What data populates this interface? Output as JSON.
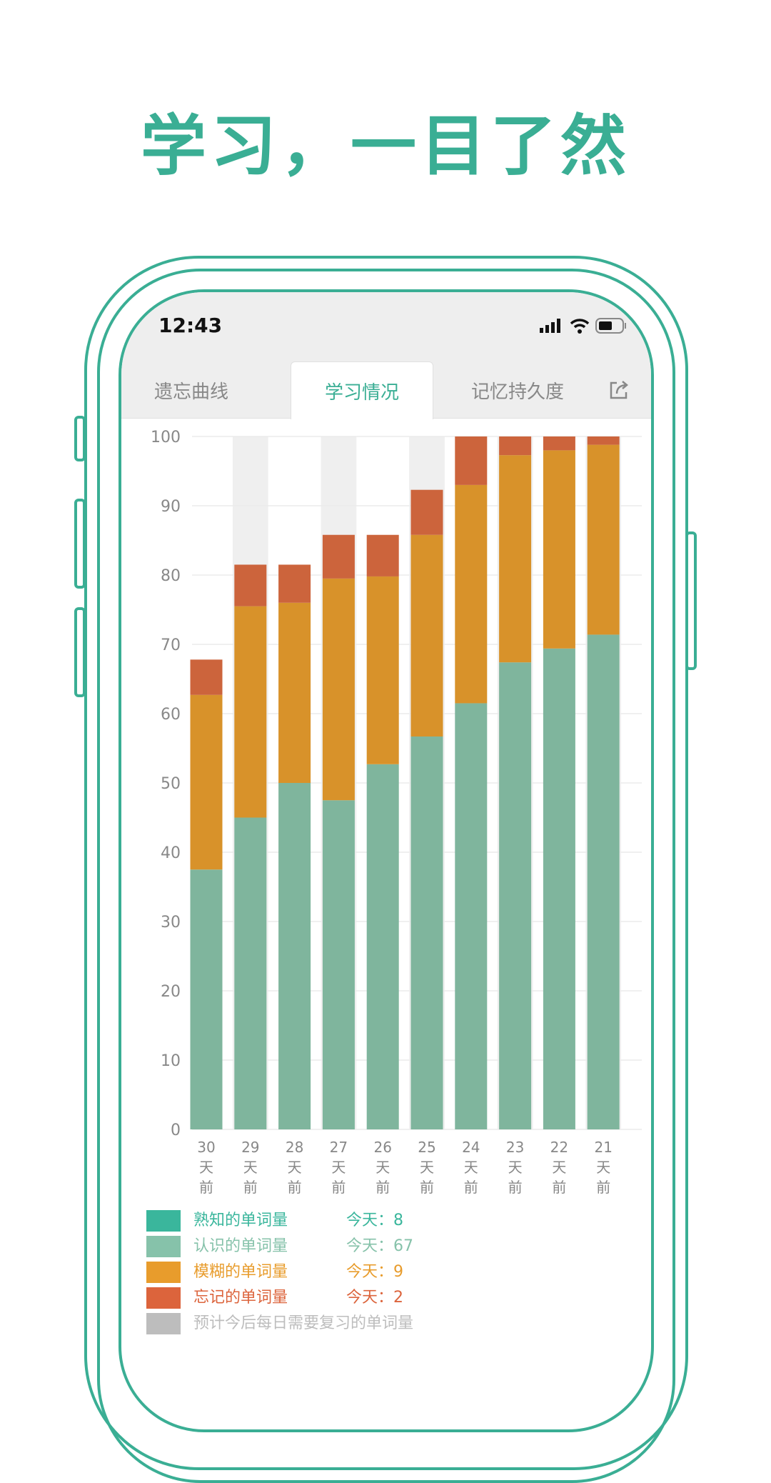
{
  "headline": "学习，一目了然",
  "status_bar": {
    "time": "12:43"
  },
  "tabs": [
    {
      "label": "遗忘曲线",
      "active": false
    },
    {
      "label": "学习情况",
      "active": true
    },
    {
      "label": "记忆持久度",
      "active": false
    }
  ],
  "colors": {
    "accent": "#3aae94",
    "known": "#3ab69c",
    "recognized": "#7fb59d",
    "vague": "#d8922a",
    "forgotten": "#cc643c",
    "predicted": "#bdbdbd"
  },
  "chart_data": {
    "type": "bar",
    "stacked": true,
    "categories": [
      "30天前",
      "29天前",
      "28天前",
      "27天前",
      "26天前",
      "25天前",
      "24天前",
      "23天前",
      "22天前",
      "21天前"
    ],
    "category_labels": [
      [
        "30",
        "天",
        "前"
      ],
      [
        "29",
        "天",
        "前"
      ],
      [
        "28",
        "天",
        "前"
      ],
      [
        "27",
        "天",
        "前"
      ],
      [
        "26",
        "天",
        "前"
      ],
      [
        "25",
        "天",
        "前"
      ],
      [
        "24",
        "天",
        "前"
      ],
      [
        "23",
        "天",
        "前"
      ],
      [
        "22",
        "天",
        "前"
      ],
      [
        "21",
        "天",
        "前"
      ]
    ],
    "ylim": [
      0,
      100
    ],
    "yticks": [
      "0",
      "10",
      "20",
      "30",
      "40",
      "50",
      "60",
      "70",
      "80",
      "90",
      "100"
    ],
    "grid": true,
    "series": [
      {
        "name": "认识的单词量",
        "color": "#7fb59d",
        "values": [
          37.5,
          45,
          50,
          47.5,
          52.7,
          56.7,
          61.5,
          67.4,
          69.4,
          71.4
        ]
      },
      {
        "name": "模糊的单词量",
        "color": "#d8922a",
        "values": [
          25.2,
          30.5,
          26,
          32,
          27.1,
          29.1,
          31.5,
          29.9,
          28.6,
          27.4
        ]
      },
      {
        "name": "忘记的单词量",
        "color": "#cc643c",
        "values": [
          5.1,
          6,
          5.5,
          6.3,
          6,
          6.5,
          7,
          2.7,
          2,
          1.2
        ]
      }
    ]
  },
  "legend": [
    {
      "label": "熟知的单词量",
      "today": "今天：8",
      "color": "#3ab69c"
    },
    {
      "label": "认识的单词量",
      "today": "今天：67",
      "color": "#86c2aa"
    },
    {
      "label": "模糊的单词量",
      "today": "今天：9",
      "color": "#e89c2c"
    },
    {
      "label": "忘记的单词量",
      "today": "今天：2",
      "color": "#dc643c"
    },
    {
      "label": "预计今后每日需要复习的单词量",
      "today": "",
      "color": "#bdbdbd"
    }
  ]
}
